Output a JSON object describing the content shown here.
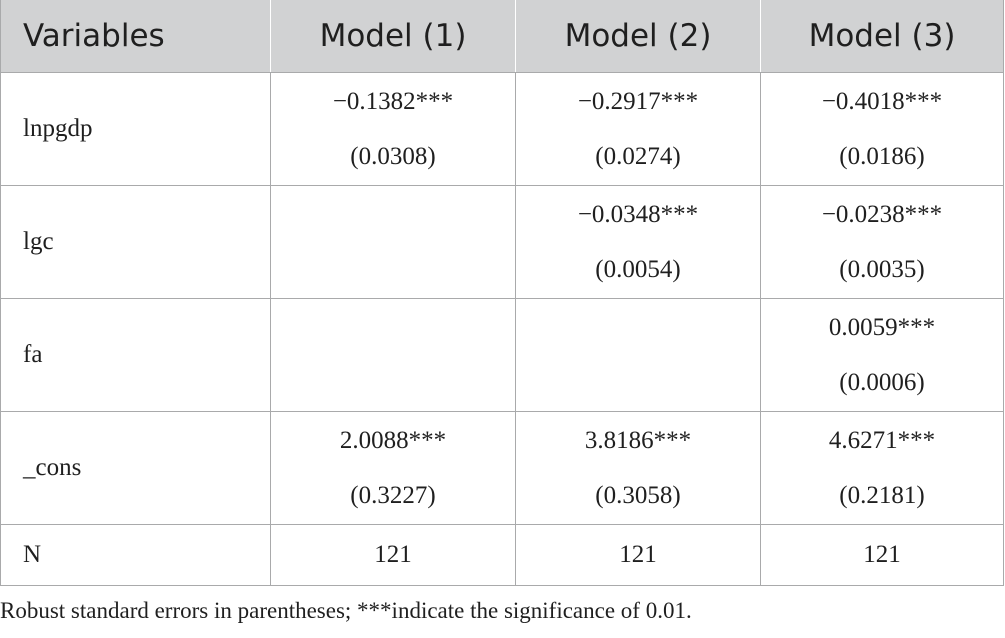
{
  "table": {
    "headers": [
      "Variables",
      "Model (1)",
      "Model (2)",
      "Model (3)"
    ],
    "rows": [
      {
        "variable": "lnpgdp",
        "cells": [
          {
            "coef": "−0.1382***",
            "se": "(0.0308)"
          },
          {
            "coef": "−0.2917***",
            "se": "(0.0274)"
          },
          {
            "coef": "−0.4018***",
            "se": "(0.0186)"
          }
        ]
      },
      {
        "variable": "lgc",
        "cells": [
          {
            "coef": "",
            "se": ""
          },
          {
            "coef": "−0.0348***",
            "se": "(0.0054)"
          },
          {
            "coef": "−0.0238***",
            "se": "(0.0035)"
          }
        ]
      },
      {
        "variable": "fa",
        "cells": [
          {
            "coef": "",
            "se": ""
          },
          {
            "coef": "",
            "se": ""
          },
          {
            "coef": "0.0059***",
            "se": "(0.0006)"
          }
        ]
      },
      {
        "variable": "_cons",
        "cells": [
          {
            "coef": "2.0088***",
            "se": "(0.3227)"
          },
          {
            "coef": "3.8186***",
            "se": "(0.3058)"
          },
          {
            "coef": "4.6271***",
            "se": "(0.2181)"
          }
        ]
      }
    ],
    "n_row": {
      "label": "N",
      "values": [
        "121",
        "121",
        "121"
      ]
    }
  },
  "note": "Robust standard errors in parentheses; ***indicate the significance of 0.01.",
  "colors": {
    "header_background": "#d1d2d3",
    "border": "#a9aaab",
    "text": "#1f1f1f"
  }
}
